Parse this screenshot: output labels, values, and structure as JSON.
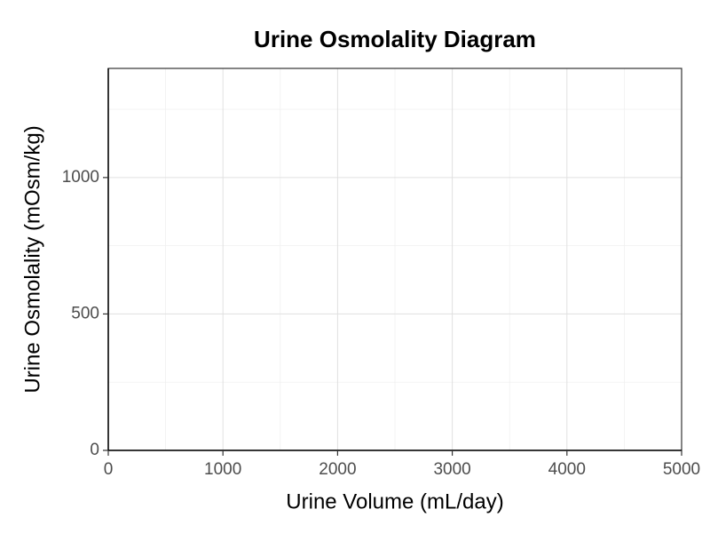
{
  "chart_data": {
    "type": "scatter",
    "title": "Urine Osmolality Diagram",
    "x_label": "Urine Volume (mL/day)",
    "y_label": "Urine Osmolality (mOsm/kg)",
    "xlim": [
      0,
      5000
    ],
    "xticks": [
      0,
      1000,
      2000,
      3000,
      4000,
      5000
    ],
    "x_minor_ticks": [
      500,
      1500,
      2500,
      3500,
      4500
    ],
    "ylim": [
      0,
      1400
    ],
    "yticks": [
      0,
      500,
      1000
    ],
    "y_minor_ticks": [
      250,
      750,
      1250
    ],
    "grid": true
  }
}
